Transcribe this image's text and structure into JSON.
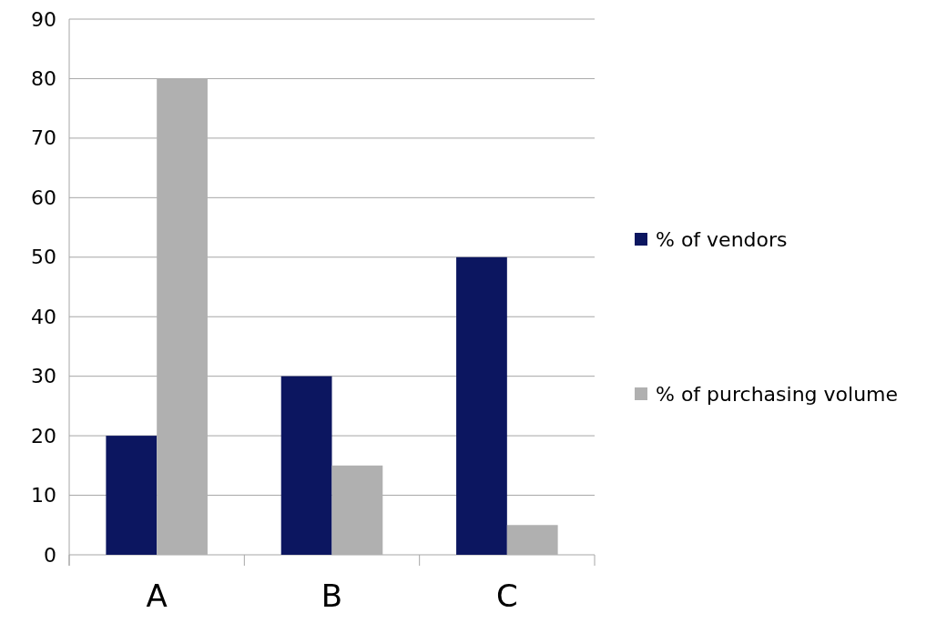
{
  "chart_data": {
    "type": "bar",
    "categories": [
      "A",
      "B",
      "C"
    ],
    "series": [
      {
        "name": "% of vendors",
        "color": "#0c1660",
        "values": [
          20,
          30,
          50
        ]
      },
      {
        "name": "% of purchasing volume",
        "color": "#b0b0b0",
        "values": [
          80,
          15,
          5
        ]
      }
    ],
    "ylim": [
      0,
      90
    ],
    "yticks": [
      0,
      10,
      20,
      30,
      40,
      50,
      60,
      70,
      80,
      90
    ],
    "grid": "y",
    "legend": "right"
  }
}
